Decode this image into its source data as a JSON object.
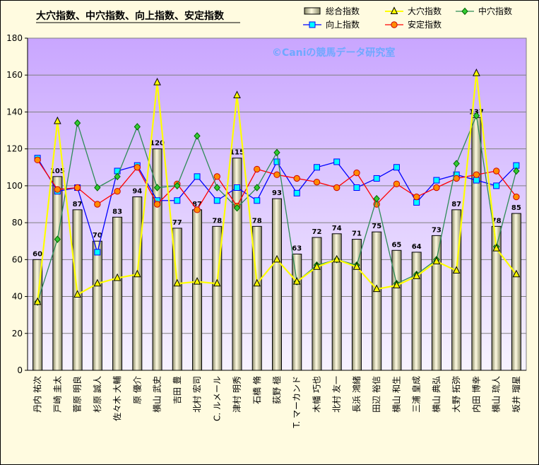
{
  "chart_data": {
    "type": "bar",
    "title": "大穴指数、中穴指数、向上指数、安定指数",
    "watermark": "©Caniの競馬データ研究室",
    "ylim": [
      0,
      180
    ],
    "yticks": [
      0,
      20,
      40,
      60,
      80,
      100,
      120,
      140,
      160,
      180
    ],
    "grid": "horizontal",
    "legend_position": "top-right",
    "categories": [
      "丹内 祐次",
      "戸崎 圭太",
      "菅原 明良",
      "杉原 誠人",
      "佐々木 大輔",
      "原 優介",
      "横山 武史",
      "吉田 豊",
      "北村 宏司",
      "C. ルメール",
      "津村 明秀",
      "石橋 脩",
      "荻野 極",
      "T. マーカンド",
      "木幡 巧也",
      "北村 友一",
      "長浜 鴻緒",
      "田辺 裕信",
      "横山 和生",
      "三浦 皇成",
      "横山 典弘",
      "大野 拓弥",
      "内田 博幸",
      "横山 琉人",
      "坂井 瑠星"
    ],
    "series": [
      {
        "name": "総合指数",
        "kind": "bar",
        "color": "#fffbe0",
        "values": [
          60,
          105,
          87,
          70,
          83,
          94,
          120,
          77,
          87,
          78,
          115,
          78,
          93,
          63,
          72,
          74,
          71,
          75,
          65,
          64,
          73,
          87,
          137,
          78,
          85
        ],
        "labels": [
          "60",
          "105",
          "87",
          "70",
          "83",
          "94",
          "120",
          "77",
          "87",
          "78",
          "115",
          "78",
          "93",
          "63",
          "72",
          "74",
          "71",
          "75",
          "65",
          "64",
          "73",
          "87",
          "137",
          "78",
          "85"
        ]
      },
      {
        "name": "大穴指数",
        "kind": "line",
        "marker": "triangle",
        "color": "#ffff00",
        "marker_fill": "#ffff00",
        "values": [
          37,
          135,
          41,
          47,
          50,
          52,
          156,
          47,
          48,
          47,
          149,
          47,
          60,
          48,
          56,
          60,
          56,
          44,
          46,
          51,
          59,
          54,
          161,
          66,
          52
        ]
      },
      {
        "name": "中穴指数",
        "kind": "line",
        "marker": "diamond",
        "color": "#2e8b57",
        "marker_fill": "#33cc33",
        "values": [
          37,
          71,
          134,
          99,
          105,
          132,
          99,
          100,
          127,
          99,
          88,
          99,
          118,
          48,
          57,
          60,
          57,
          93,
          47,
          52,
          60,
          112,
          138,
          67,
          108
        ]
      },
      {
        "name": "向上指数",
        "kind": "line",
        "marker": "square",
        "color": "#0000ff",
        "marker_fill": "#00ffff",
        "values": [
          115,
          97,
          99,
          64,
          108,
          111,
          92,
          92,
          105,
          92,
          99,
          92,
          113,
          96,
          110,
          113,
          99,
          104,
          110,
          91,
          103,
          106,
          103,
          100,
          111
        ]
      },
      {
        "name": "安定指数",
        "kind": "line",
        "marker": "circle",
        "color": "#ff0000",
        "marker_fill": "#ff8c00",
        "values": [
          114,
          98,
          99,
          90,
          97,
          110,
          90,
          101,
          87,
          105,
          89,
          109,
          106,
          104,
          102,
          99,
          107,
          90,
          101,
          94,
          99,
          104,
          106,
          108,
          94
        ]
      }
    ]
  }
}
